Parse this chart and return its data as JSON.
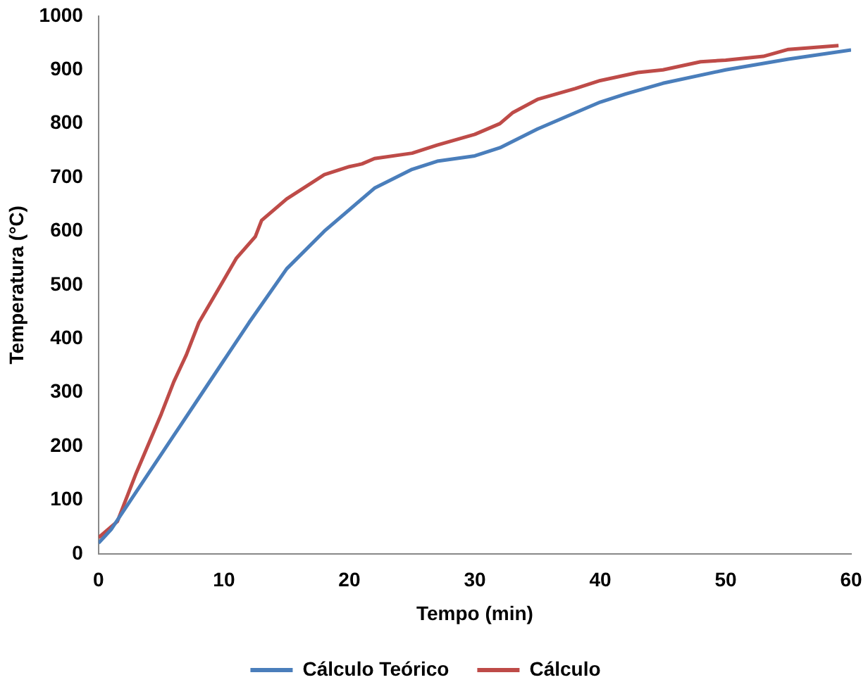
{
  "chart_data": {
    "type": "line",
    "xlabel": "Tempo (min)",
    "ylabel": "Temperatura (°C)",
    "xlim": [
      0,
      60
    ],
    "xticks": [
      0,
      10,
      20,
      30,
      40,
      50,
      60
    ],
    "ylim": [
      0,
      1000
    ],
    "yticks": [
      0,
      100,
      200,
      300,
      400,
      500,
      600,
      700,
      800,
      900,
      1000
    ],
    "grid": false,
    "legend": "bottom",
    "marker": "none",
    "line_style": "solid",
    "series": [
      {
        "name": "Cálculo Teórico",
        "color": "#4a7ebb",
        "x": [
          0,
          1,
          2,
          4,
          6,
          8,
          10,
          12,
          15,
          18,
          20,
          22,
          25,
          27,
          30,
          32,
          35,
          38,
          40,
          42,
          45,
          50,
          55,
          60
        ],
        "values": [
          20,
          45,
          80,
          150,
          220,
          290,
          360,
          430,
          530,
          600,
          640,
          680,
          715,
          730,
          740,
          755,
          790,
          820,
          840,
          855,
          875,
          900,
          920,
          937
        ]
      },
      {
        "name": "Cálculo",
        "color": "#be4b48",
        "x": [
          0,
          1.5,
          3,
          5,
          6,
          7,
          8,
          10,
          11,
          12.5,
          13,
          15,
          18,
          20,
          21,
          22,
          25,
          27,
          30,
          32,
          33,
          35,
          38,
          40,
          43,
          45,
          48,
          50,
          53,
          55,
          59
        ],
        "values": [
          30,
          60,
          150,
          260,
          320,
          370,
          430,
          510,
          550,
          590,
          620,
          660,
          705,
          720,
          725,
          735,
          745,
          760,
          780,
          800,
          820,
          845,
          865,
          880,
          895,
          900,
          915,
          918,
          925,
          938,
          945
        ]
      }
    ]
  }
}
